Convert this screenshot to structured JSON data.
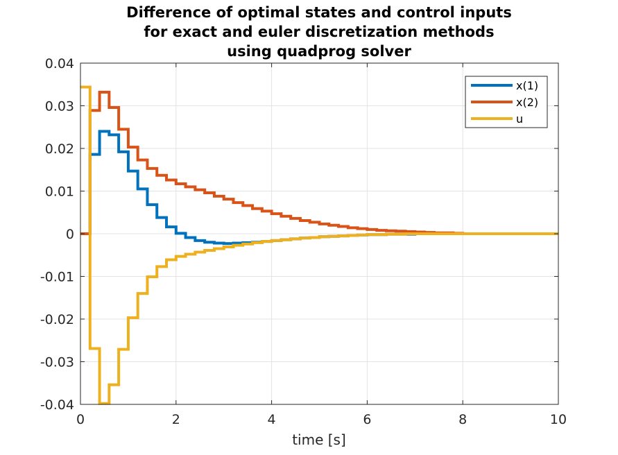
{
  "chart_data": {
    "type": "line",
    "style": "stairs",
    "title": [
      "Difference of optimal states and control inputs",
      "for exact and euler discretization methods",
      "using quadprog solver"
    ],
    "xlabel": "time [s]",
    "ylabel": "",
    "xlim": [
      0,
      10
    ],
    "ylim": [
      -0.04,
      0.04
    ],
    "xticks": [
      0,
      2,
      4,
      6,
      8,
      10
    ],
    "xtick_labels": [
      "0",
      "2",
      "4",
      "6",
      "8",
      "10"
    ],
    "yticks": [
      -0.04,
      -0.03,
      -0.02,
      -0.01,
      0,
      0.01,
      0.02,
      0.03,
      0.04
    ],
    "ytick_labels": [
      "-0.04",
      "-0.03",
      "-0.02",
      "-0.01",
      "0",
      "0.01",
      "0.02",
      "0.03",
      "0.04"
    ],
    "grid": true,
    "legend_position": "top-right",
    "sample_time": 0.2,
    "series": [
      {
        "name": "x(1)",
        "color": "#0072BD",
        "x": [
          0,
          0.2,
          0.4,
          0.6,
          0.8,
          1.0,
          1.2,
          1.4,
          1.6,
          1.8,
          2.0,
          2.2,
          2.4,
          2.6,
          2.8,
          3.0,
          3.2,
          3.4,
          3.6,
          3.8,
          4.0,
          4.2,
          4.4,
          4.6,
          4.8,
          5.0,
          5.2,
          5.4,
          5.6,
          5.8,
          6.0,
          6.2,
          6.4,
          6.6,
          6.8,
          7.0,
          7.2,
          7.4,
          7.6,
          7.8,
          8.0,
          8.2,
          8.4,
          8.6,
          8.8,
          9.0,
          9.2,
          9.4,
          9.6,
          9.8
        ],
        "y": [
          0,
          0.0186,
          0.024,
          0.0232,
          0.0192,
          0.0147,
          0.0105,
          0.0068,
          0.0038,
          0.0016,
          0.0001,
          -0.0009,
          -0.0016,
          -0.002,
          -0.0022,
          -0.0023,
          -0.0022,
          -0.0021,
          -0.002,
          -0.0018,
          -0.0016,
          -0.0014,
          -0.0012,
          -0.001,
          -0.0009,
          -0.0007,
          -0.0006,
          -0.0005,
          -0.0004,
          -0.0003,
          -0.0002,
          -0.0002,
          -0.0001,
          -0.0001,
          -0.0001,
          0,
          0,
          0,
          0,
          0,
          0,
          0,
          0,
          0,
          0,
          0,
          0,
          0,
          0,
          0
        ]
      },
      {
        "name": "x(2)",
        "color": "#D95319",
        "x": [
          0,
          0.2,
          0.4,
          0.6,
          0.8,
          1.0,
          1.2,
          1.4,
          1.6,
          1.8,
          2.0,
          2.2,
          2.4,
          2.6,
          2.8,
          3.0,
          3.2,
          3.4,
          3.6,
          3.8,
          4.0,
          4.2,
          4.4,
          4.6,
          4.8,
          5.0,
          5.2,
          5.4,
          5.6,
          5.8,
          6.0,
          6.2,
          6.4,
          6.6,
          6.8,
          7.0,
          7.2,
          7.4,
          7.6,
          7.8,
          8.0,
          8.2,
          8.4,
          8.6,
          8.8,
          9.0,
          9.2,
          9.4,
          9.6,
          9.8
        ],
        "y": [
          0,
          0.0289,
          0.0332,
          0.0296,
          0.0245,
          0.0203,
          0.0173,
          0.0153,
          0.0137,
          0.0126,
          0.0117,
          0.011,
          0.0103,
          0.0096,
          0.0088,
          0.0081,
          0.0073,
          0.0066,
          0.0059,
          0.0053,
          0.0047,
          0.0041,
          0.0036,
          0.0031,
          0.0027,
          0.0023,
          0.002,
          0.0017,
          0.0014,
          0.0012,
          0.001,
          0.0008,
          0.0007,
          0.0006,
          0.0005,
          0.0004,
          0.0003,
          0.0002,
          0.0002,
          0.0001,
          0,
          0,
          0,
          0,
          0,
          0,
          0,
          0,
          0,
          0
        ]
      },
      {
        "name": "u",
        "color": "#EDB120",
        "x": [
          0,
          0.2,
          0.4,
          0.6,
          0.8,
          1.0,
          1.2,
          1.4,
          1.6,
          1.8,
          2.0,
          2.2,
          2.4,
          2.6,
          2.8,
          3.0,
          3.2,
          3.4,
          3.6,
          3.8,
          4.0,
          4.2,
          4.4,
          4.6,
          4.8,
          5.0,
          5.2,
          5.4,
          5.6,
          5.8,
          6.0,
          6.2,
          6.4,
          6.6,
          6.8,
          7.0,
          7.2,
          7.4,
          7.6,
          7.8,
          8.0,
          8.2,
          8.4,
          8.6,
          8.8,
          9.0,
          9.2,
          9.4,
          9.6,
          9.8
        ],
        "y": [
          0.0344,
          -0.0269,
          -0.0398,
          -0.0354,
          -0.0271,
          -0.0197,
          -0.014,
          -0.0101,
          -0.0077,
          -0.0061,
          -0.0053,
          -0.0048,
          -0.0043,
          -0.0039,
          -0.0035,
          -0.0031,
          -0.0027,
          -0.0024,
          -0.0021,
          -0.0018,
          -0.0016,
          -0.0014,
          -0.0012,
          -0.001,
          -0.0009,
          -0.0007,
          -0.0006,
          -0.0005,
          -0.0004,
          -0.0003,
          -0.0002,
          -0.0002,
          -0.0001,
          -0.0001,
          0,
          0,
          0,
          0,
          0,
          0,
          0,
          0,
          0,
          0,
          0,
          0,
          0,
          0,
          0,
          0
        ]
      }
    ]
  }
}
